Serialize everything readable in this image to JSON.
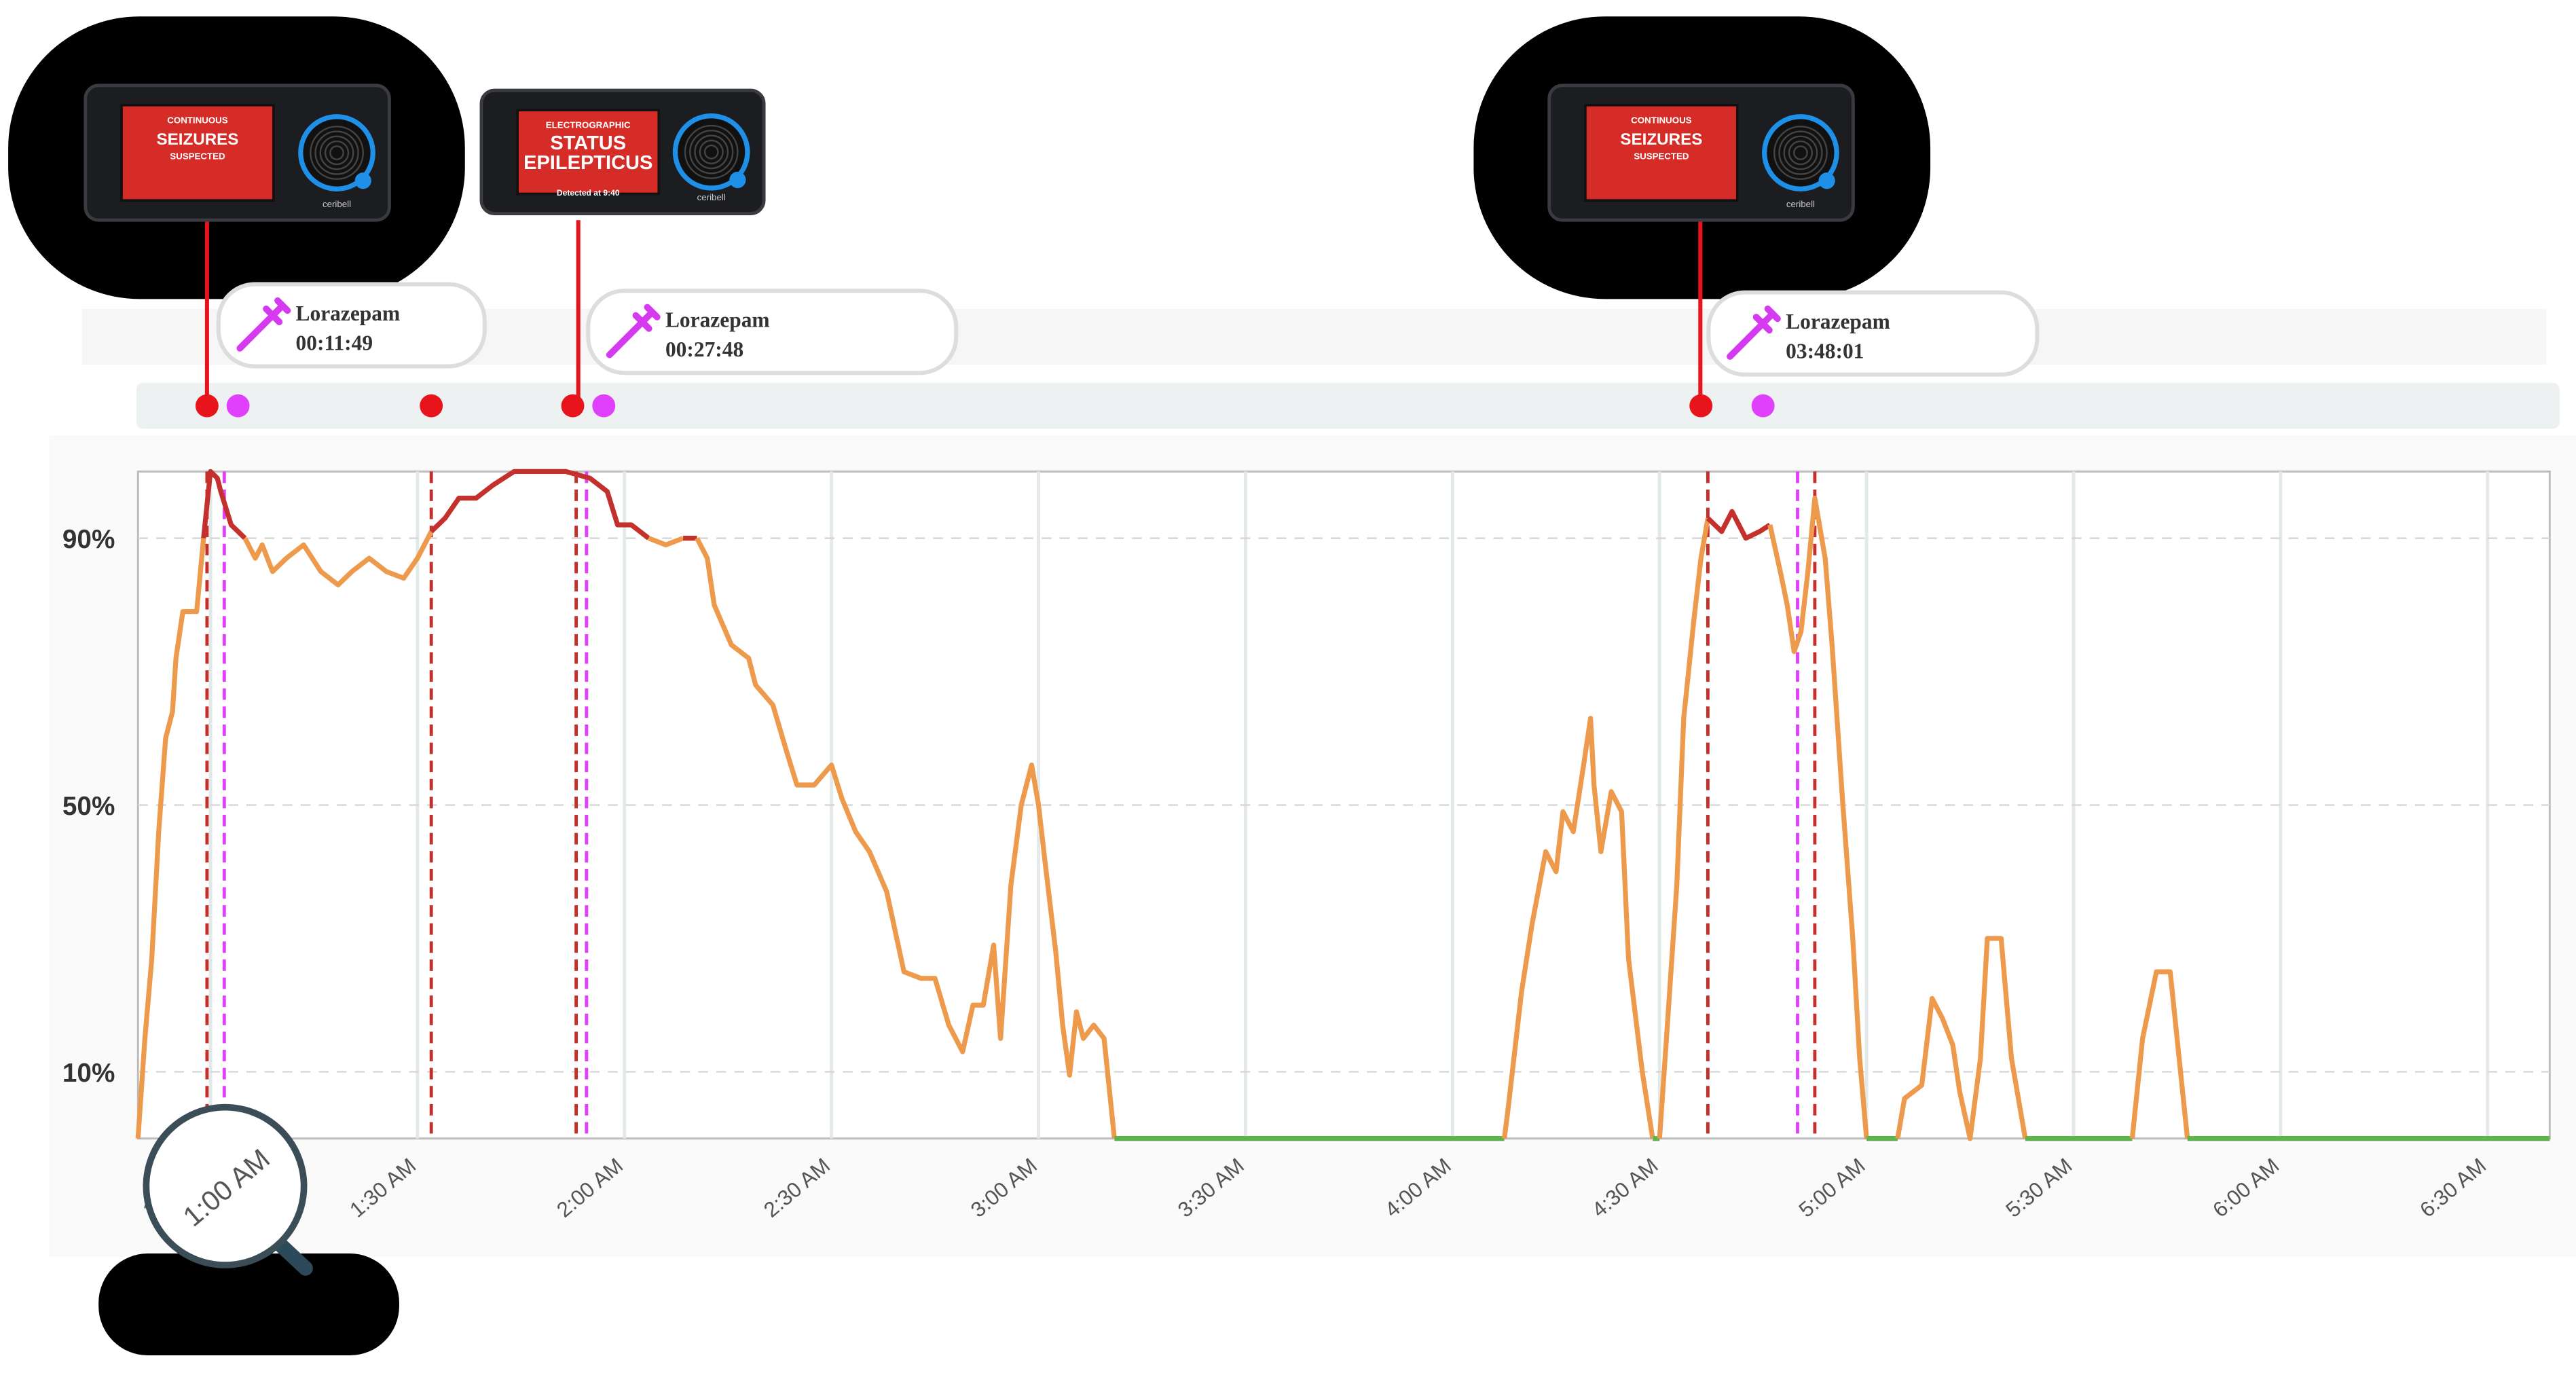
{
  "chart_data": {
    "type": "line",
    "x": [
      49.5,
      50.5,
      51.5,
      52.5,
      53.5,
      54.5,
      55,
      56,
      58,
      59,
      60,
      61,
      61.5,
      63,
      64,
      65,
      66.5,
      67.5,
      69,
      71,
      73.5,
      76,
      78.5,
      80.5,
      83,
      85.5,
      88,
      90,
      92,
      94,
      96,
      98.5,
      101,
      104,
      108,
      111.5,
      115,
      117.5,
      119,
      121,
      123.5,
      126,
      128.5,
      130.5,
      132,
      133,
      135.5,
      138,
      139,
      141.5,
      143.5,
      145,
      147.5,
      150,
      151.5,
      153.5,
      155.5,
      158,
      160.5,
      163,
      165,
      167,
      169,
      170.5,
      172,
      173.5,
      174.5,
      176,
      177.5,
      179,
      180,
      181,
      182.5,
      183.5,
      184.5,
      185.5,
      186.5,
      188,
      189.5,
      191,
      208,
      232,
      247.5,
      248,
      250,
      251.5,
      253.5,
      255,
      256,
      257.5,
      259,
      260,
      260.5,
      261.5,
      263,
      264.5,
      265.5,
      267.5,
      269,
      270,
      271,
      272.5,
      273.5,
      275,
      276,
      277,
      279,
      280.5,
      282.5,
      284.5,
      286,
      287.5,
      288.5,
      289.5,
      290.5,
      291.5,
      292.5,
      294,
      295,
      296.5,
      298,
      299,
      300,
      304.5,
      305.5,
      308,
      309.5,
      311,
      312.5,
      313.5,
      315,
      316.5,
      317.5,
      319.5,
      321,
      323,
      338.5,
      340,
      342,
      344,
      345,
      346.5,
      375,
      399
    ],
    "series": [
      {
        "color": "#ee9a4d",
        "values": [
          0,
          15,
          27,
          46,
          60,
          64,
          72,
          79,
          79,
          90,
          100,
          99,
          97,
          92,
          91,
          90,
          87,
          89,
          85,
          87,
          89,
          85,
          83,
          85,
          87,
          85,
          84,
          87,
          91,
          93,
          96,
          96,
          98,
          100,
          100,
          100,
          99,
          97,
          92,
          92,
          90,
          89,
          90,
          90,
          87,
          80,
          74,
          72,
          68,
          65,
          58,
          53,
          53,
          56,
          51,
          46,
          43,
          37,
          25,
          24,
          24,
          17,
          13,
          20,
          20,
          29,
          15,
          38,
          50,
          56,
          50,
          41,
          28,
          17,
          9.5,
          19,
          15,
          17,
          15,
          0,
          0,
          0,
          0,
          4,
          22,
          32,
          43,
          40,
          49,
          46,
          56,
          63,
          53,
          43,
          52,
          49,
          27,
          10,
          0,
          0,
          15,
          38,
          63,
          78,
          87,
          93,
          91,
          94,
          90,
          91,
          92,
          85,
          80,
          73,
          76,
          85,
          96,
          87,
          74,
          51,
          30,
          12,
          0,
          0,
          6,
          8,
          21,
          18,
          14,
          7,
          0,
          12,
          30,
          30,
          12,
          0,
          0,
          15,
          25,
          25,
          15,
          0,
          0,
          0
        ]
      }
    ],
    "color_high": "#c4302b",
    "color_zero": "#5cb44a",
    "xlim": [
      49.5,
      399
    ],
    "ylim": [
      0,
      100
    ],
    "xticks": [
      {
        "value": 60,
        "label": "1:00 AM"
      },
      {
        "value": 90,
        "label": "1:30 AM"
      },
      {
        "value": 120,
        "label": "2:00 AM"
      },
      {
        "value": 150,
        "label": "2:30 AM"
      },
      {
        "value": 180,
        "label": "3:00 AM"
      },
      {
        "value": 210,
        "label": "3:30 AM"
      },
      {
        "value": 240,
        "label": "4:00 AM"
      },
      {
        "value": 270,
        "label": "4:30 AM"
      },
      {
        "value": 300,
        "label": "5:00 AM"
      },
      {
        "value": 330,
        "label": "5:30 AM"
      },
      {
        "value": 360,
        "label": "6:00 AM"
      },
      {
        "value": 390,
        "label": "6:30 AM"
      }
    ],
    "yticks": [
      {
        "value": 10,
        "label": "10%"
      },
      {
        "value": 50,
        "label": "50%"
      },
      {
        "value": 90,
        "label": "90%"
      }
    ],
    "grid": true,
    "seizure_onsets": [
      59.5,
      92,
      113,
      277,
      292.5
    ],
    "seizure_color": "#c4302b",
    "drug_doses": [
      62,
      114.5,
      290
    ],
    "drug_color": "#e040fb",
    "seizure_alerts": [
      59.5,
      92,
      112.5,
      276
    ],
    "medication_times": [
      64,
      117,
      285
    ],
    "medications": [
      {
        "name": "Lorazepam",
        "time": "00:11:49"
      },
      {
        "name": "Lorazepam",
        "time": "00:27:48"
      },
      {
        "name": "Lorazepam",
        "time": "03:48:01"
      }
    ],
    "devices": [
      {
        "top": "CONTINUOUS",
        "main": [
          "SEIZURES"
        ],
        "bottom": "SUSPECTED",
        "brand": "ceribell"
      },
      {
        "top": "ELECTROGRAPHIC",
        "main": [
          "STATUS",
          "EPILEPTICUS"
        ],
        "bottom": "Detected at 9:40",
        "brand": "ceribell"
      },
      {
        "top": "CONTINUOUS",
        "main": [
          "SEIZURES"
        ],
        "bottom": "SUSPECTED",
        "brand": "ceribell"
      }
    ]
  }
}
